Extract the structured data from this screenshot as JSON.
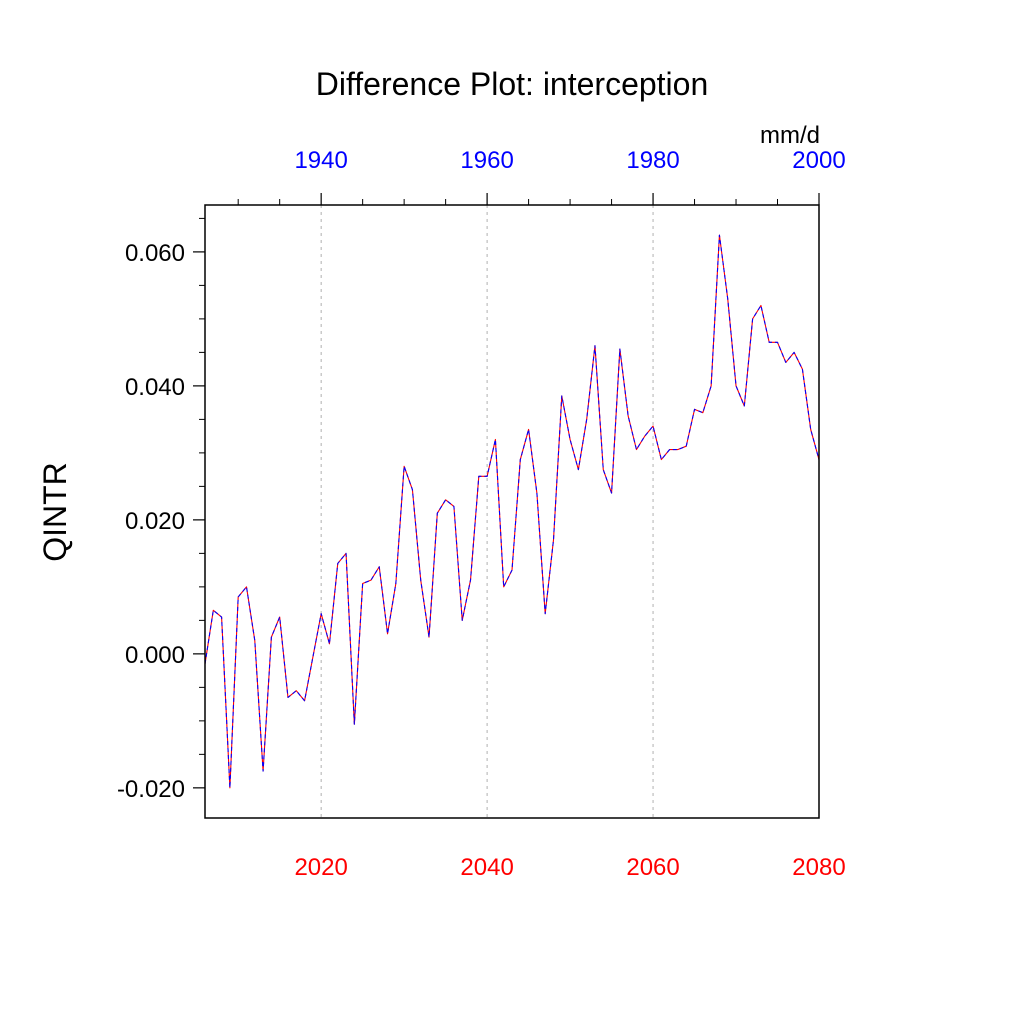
{
  "chart_data": {
    "type": "line",
    "title": "Difference Plot: interception",
    "ylabel": "QINTR",
    "units": "mm/d",
    "x_bottom": {
      "range": [
        2006,
        2080
      ],
      "ticks": [
        2020,
        2040,
        2060,
        2080
      ],
      "color": "#ff0000"
    },
    "x_top": {
      "range": [
        1926,
        2000
      ],
      "ticks": [
        1940,
        1960,
        1980,
        2000
      ],
      "color": "#0000ff"
    },
    "y": {
      "range": [
        -0.0245,
        0.067
      ],
      "ticks": [
        -0.02,
        0,
        0.02,
        0.04,
        0.06
      ],
      "tick_labels": [
        "-0.020",
        "0.000",
        "0.020",
        "0.040",
        "0.060"
      ]
    },
    "grid": "vertical dashed at bottom-axis major ticks",
    "series": [
      {
        "color": "#ff0000",
        "x": [
          2006,
          2007,
          2008,
          2009,
          2010,
          2011,
          2012,
          2013,
          2014,
          2015,
          2016,
          2017,
          2018,
          2019,
          2020,
          2021,
          2022,
          2023,
          2024,
          2025,
          2026,
          2027,
          2028,
          2029,
          2030,
          2031,
          2032,
          2033,
          2034,
          2035,
          2036,
          2037,
          2038,
          2039,
          2040,
          2041,
          2042,
          2043,
          2044,
          2045,
          2046,
          2047,
          2048,
          2049,
          2050,
          2051,
          2052,
          2053,
          2054,
          2055,
          2056,
          2057,
          2058,
          2059,
          2060,
          2061,
          2062,
          2063,
          2064,
          2065,
          2066,
          2067,
          2068,
          2069,
          2070,
          2071,
          2072,
          2073,
          2074,
          2075,
          2076,
          2077,
          2078,
          2079,
          2080
        ],
        "values": [
          -0.0015,
          0.0065,
          0.0055,
          -0.02,
          0.0085,
          0.01,
          0.002,
          -0.0175,
          0.0025,
          0.0055,
          -0.0065,
          -0.0055,
          -0.007,
          -0.0005,
          0.006,
          0.0015,
          0.0135,
          0.015,
          -0.0105,
          0.0105,
          0.011,
          0.013,
          0.003,
          0.0105,
          0.028,
          0.0245,
          0.011,
          0.0025,
          0.021,
          0.023,
          0.022,
          0.005,
          0.011,
          0.0265,
          0.0265,
          0.032,
          0.01,
          0.0125,
          0.029,
          0.0335,
          0.024,
          0.006,
          0.017,
          0.0385,
          0.032,
          0.0275,
          0.035,
          0.046,
          0.0275,
          0.024,
          0.0455,
          0.0355,
          0.0305,
          0.0325,
          0.034,
          0.029,
          0.0305,
          0.0305,
          0.031,
          0.0365,
          0.036,
          0.04,
          0.0625,
          0.053,
          0.04,
          0.037,
          0.05,
          0.052,
          0.0465,
          0.0465,
          0.0435,
          0.045,
          0.0425,
          0.0335,
          0.029
        ]
      },
      {
        "color": "#0000ff",
        "dash": true,
        "x": [
          2006,
          2007,
          2008,
          2009,
          2010,
          2011,
          2012,
          2013,
          2014,
          2015,
          2016,
          2017,
          2018,
          2019,
          2020,
          2021,
          2022,
          2023,
          2024,
          2025,
          2026,
          2027,
          2028,
          2029,
          2030,
          2031,
          2032,
          2033,
          2034,
          2035,
          2036,
          2037,
          2038,
          2039,
          2040,
          2041,
          2042,
          2043,
          2044,
          2045,
          2046,
          2047,
          2048,
          2049,
          2050,
          2051,
          2052,
          2053,
          2054,
          2055,
          2056,
          2057,
          2058,
          2059,
          2060,
          2061,
          2062,
          2063,
          2064,
          2065,
          2066,
          2067,
          2068,
          2069,
          2070,
          2071,
          2072,
          2073,
          2074,
          2075,
          2076,
          2077,
          2078,
          2079,
          2080
        ],
        "values": [
          -0.0015,
          0.0065,
          0.0055,
          -0.02,
          0.0085,
          0.01,
          0.002,
          -0.0175,
          0.0025,
          0.0055,
          -0.0065,
          -0.0055,
          -0.007,
          -0.0005,
          0.006,
          0.0015,
          0.0135,
          0.015,
          -0.0105,
          0.0105,
          0.011,
          0.013,
          0.003,
          0.0105,
          0.028,
          0.0245,
          0.011,
          0.0025,
          0.021,
          0.023,
          0.022,
          0.005,
          0.011,
          0.0265,
          0.0265,
          0.032,
          0.01,
          0.0125,
          0.029,
          0.0335,
          0.024,
          0.006,
          0.017,
          0.0385,
          0.032,
          0.0275,
          0.035,
          0.046,
          0.0275,
          0.024,
          0.0455,
          0.0355,
          0.0305,
          0.0325,
          0.034,
          0.029,
          0.0305,
          0.0305,
          0.031,
          0.0365,
          0.036,
          0.04,
          0.0625,
          0.053,
          0.04,
          0.037,
          0.05,
          0.052,
          0.0465,
          0.0465,
          0.0435,
          0.045,
          0.0425,
          0.0335,
          0.029
        ]
      }
    ]
  }
}
